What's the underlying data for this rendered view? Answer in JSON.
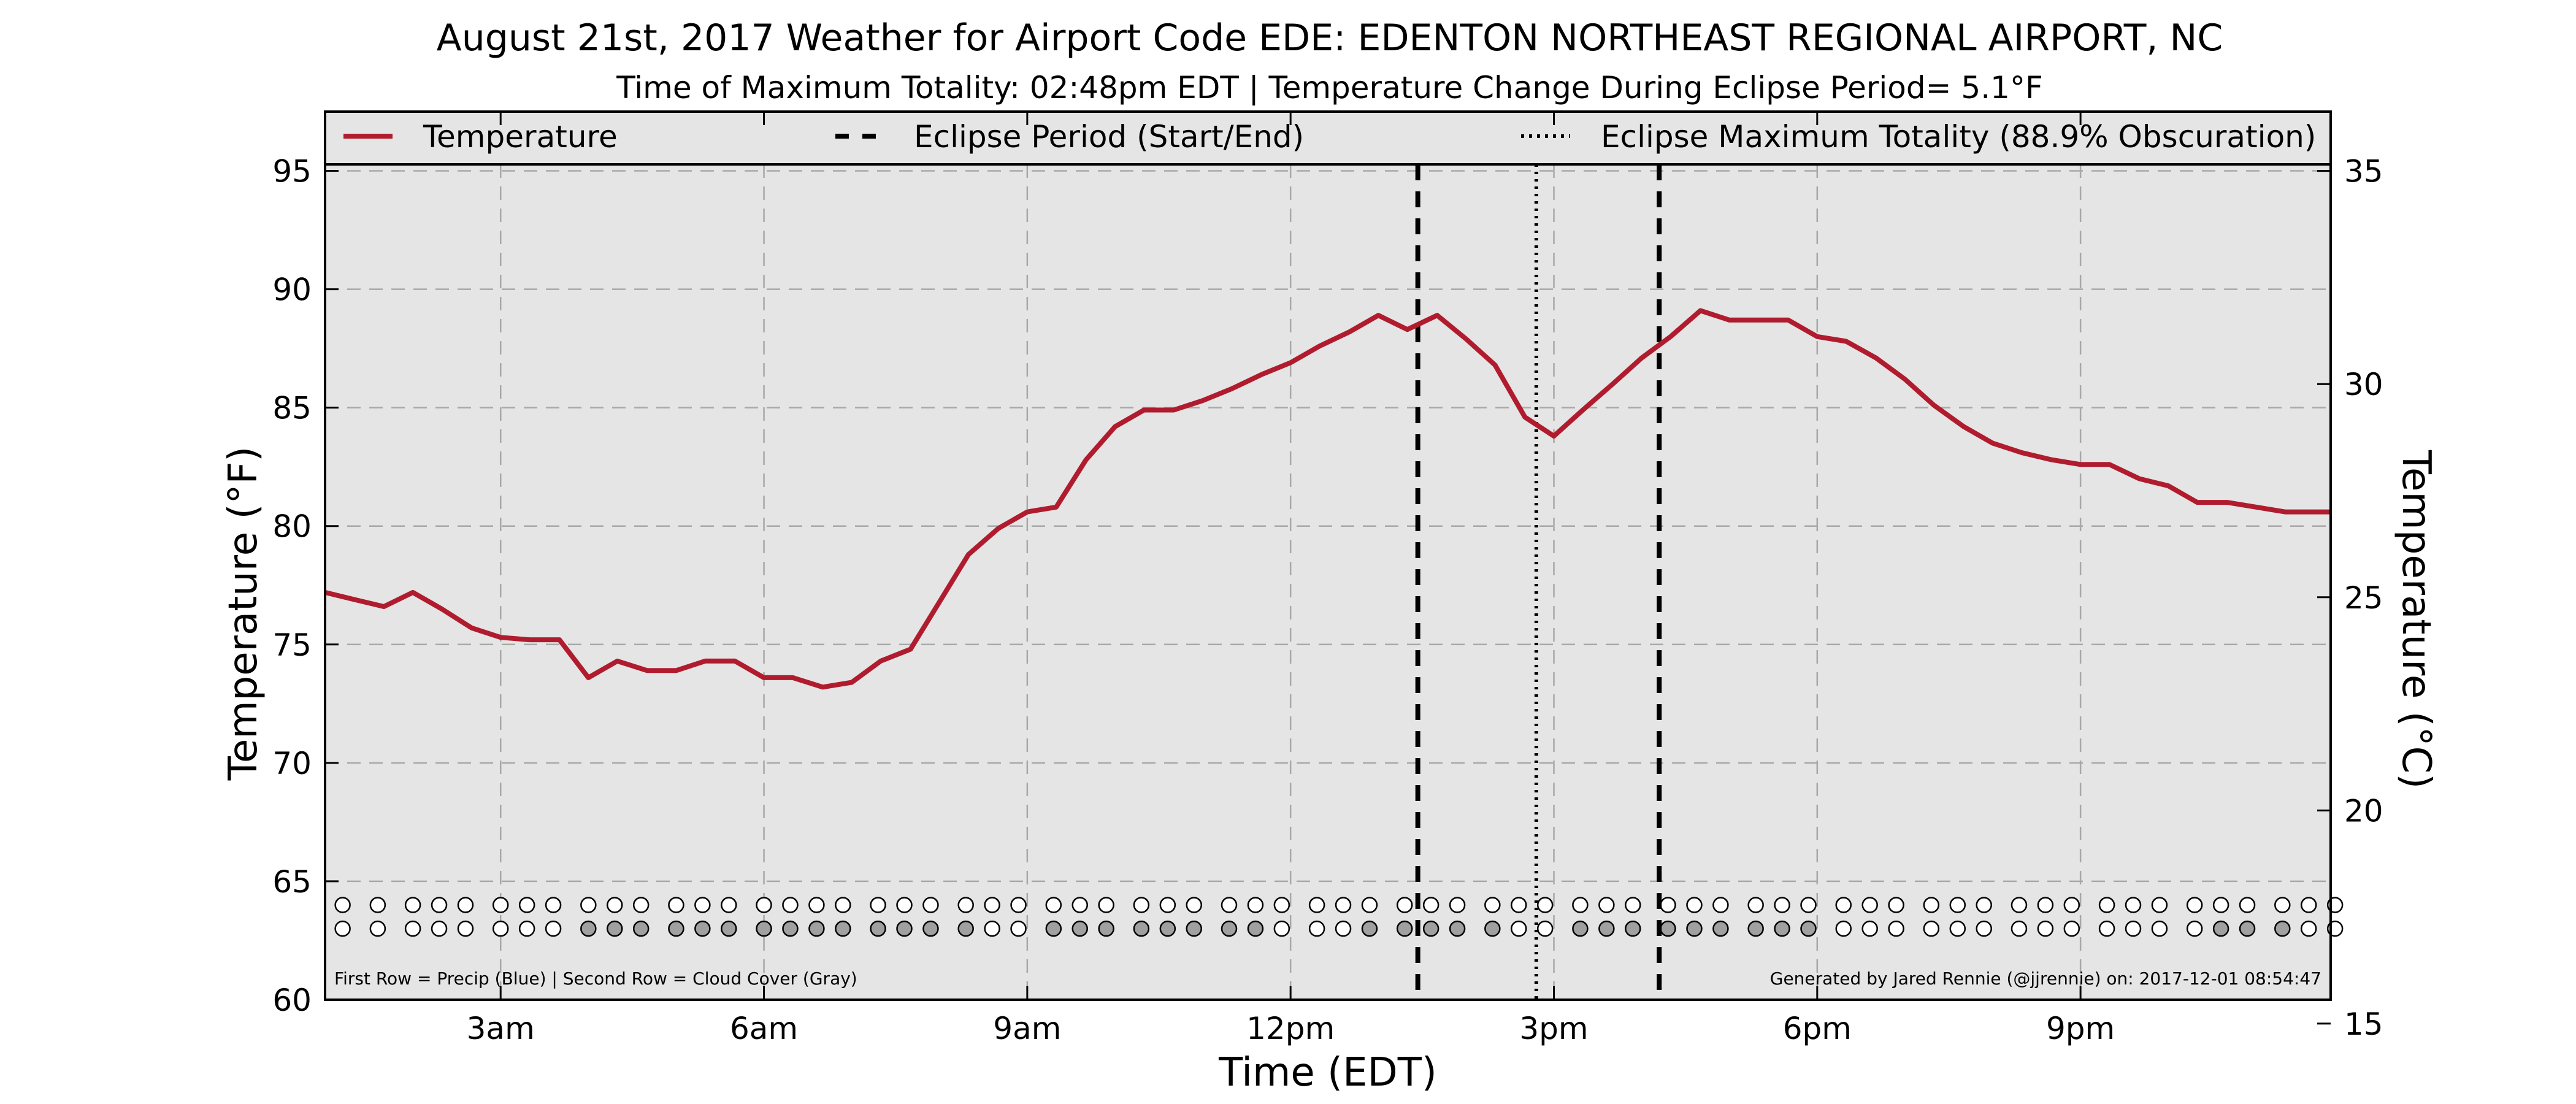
{
  "chart_data": {
    "type": "line",
    "title": "August 21st, 2017 Weather for Airport Code EDE: EDENTON NORTHEAST REGIONAL AIRPORT, NC",
    "subtitle": "Time of Maximum Totality: 02:48pm EDT | Temperature Change During Eclipse Period= 5.1°F",
    "xlabel": "Time (EDT)",
    "ylabel": "Temperature (°F)",
    "y2label": "Temperature (°C)",
    "xlim": [
      1.0,
      23.85
    ],
    "ylim": [
      60,
      97.5
    ],
    "y2lim": [
      15.56,
      36.39
    ],
    "xticks": [
      {
        "value": 3,
        "label": "3am"
      },
      {
        "value": 6,
        "label": "6am"
      },
      {
        "value": 9,
        "label": "9am"
      },
      {
        "value": 12,
        "label": "12pm"
      },
      {
        "value": 15,
        "label": "3pm"
      },
      {
        "value": 18,
        "label": "6pm"
      },
      {
        "value": 21,
        "label": "9pm"
      }
    ],
    "yticks": [
      {
        "value": 60,
        "label": "60"
      },
      {
        "value": 65,
        "label": "65"
      },
      {
        "value": 70,
        "label": "70"
      },
      {
        "value": 75,
        "label": "75"
      },
      {
        "value": 80,
        "label": "80"
      },
      {
        "value": 85,
        "label": "85"
      },
      {
        "value": 90,
        "label": "90"
      },
      {
        "value": 95,
        "label": "95"
      }
    ],
    "y2ticks": [
      {
        "value": 15,
        "label": "15"
      },
      {
        "value": 20,
        "label": "20"
      },
      {
        "value": 25,
        "label": "25"
      },
      {
        "value": 30,
        "label": "30"
      },
      {
        "value": 35,
        "label": "35"
      }
    ],
    "grid": true,
    "legend": {
      "placement": "top",
      "entries": [
        {
          "label": "Temperature",
          "style": "solid",
          "color": "#b01c2e"
        },
        {
          "label": "Eclipse Period (Start/End)",
          "style": "dashed",
          "color": "#000000"
        },
        {
          "label": "Eclipse Maximum Totality (88.9% Obscuration)",
          "style": "dotted",
          "color": "#000000"
        }
      ]
    },
    "series": [
      {
        "name": "Temperature",
        "color": "#b01c2e",
        "x": [
          1.0,
          1.33,
          1.67,
          2.0,
          2.33,
          2.67,
          3.0,
          3.33,
          3.67,
          4.0,
          4.33,
          4.67,
          5.0,
          5.33,
          5.67,
          6.0,
          6.33,
          6.67,
          7.0,
          7.33,
          7.67,
          8.0,
          8.33,
          8.67,
          9.0,
          9.33,
          9.67,
          10.0,
          10.33,
          10.67,
          11.0,
          11.33,
          11.67,
          12.0,
          12.33,
          12.67,
          13.0,
          13.33,
          13.67,
          14.0,
          14.33,
          14.67,
          15.0,
          15.33,
          15.67,
          16.0,
          16.33,
          16.67,
          17.0,
          17.33,
          17.67,
          18.0,
          18.33,
          18.67,
          19.0,
          19.33,
          19.67,
          20.0,
          20.33,
          20.67,
          21.0,
          21.33,
          21.67,
          22.0,
          22.33,
          22.67,
          23.0,
          23.33,
          23.67,
          23.85
        ],
        "values": [
          77.2,
          76.9,
          76.6,
          77.2,
          76.5,
          75.7,
          75.3,
          75.2,
          75.2,
          73.6,
          74.3,
          73.9,
          73.9,
          74.3,
          74.3,
          73.6,
          73.6,
          73.2,
          73.4,
          74.3,
          74.8,
          76.8,
          78.8,
          79.9,
          80.6,
          80.8,
          82.8,
          84.2,
          84.9,
          84.9,
          85.3,
          85.8,
          86.4,
          86.9,
          87.6,
          88.2,
          88.9,
          88.3,
          88.9,
          87.9,
          86.8,
          84.6,
          83.8,
          84.9,
          86.0,
          87.1,
          88.0,
          89.1,
          88.7,
          88.7,
          88.7,
          88.0,
          87.8,
          87.1,
          86.2,
          85.1,
          84.2,
          83.5,
          83.1,
          82.8,
          82.6,
          82.6,
          82.0,
          81.7,
          81.0,
          81.0,
          80.8,
          80.6,
          80.6,
          80.6
        ]
      }
    ],
    "eclipse_start": 13.45,
    "eclipse_end": 16.2,
    "eclipse_max": 14.8,
    "circles": {
      "row1_y": 64.0,
      "row2_y": 63.0,
      "x": [
        1.2,
        1.6,
        2.0,
        2.3,
        2.6,
        3.0,
        3.3,
        3.6,
        4.0,
        4.3,
        4.6,
        5.0,
        5.3,
        5.6,
        6.0,
        6.3,
        6.6,
        6.9,
        7.3,
        7.6,
        7.9,
        8.3,
        8.6,
        8.9,
        9.3,
        9.6,
        9.9,
        10.3,
        10.6,
        10.9,
        11.3,
        11.6,
        11.9,
        12.3,
        12.6,
        12.9,
        13.3,
        13.6,
        13.9,
        14.3,
        14.6,
        14.9,
        15.3,
        15.6,
        15.9,
        16.3,
        16.6,
        16.9,
        17.3,
        17.6,
        17.9,
        18.3,
        18.6,
        18.9,
        19.3,
        19.6,
        19.9,
        20.3,
        20.6,
        20.9,
        21.3,
        21.6,
        21.9,
        22.3,
        22.6,
        22.9,
        23.3,
        23.6,
        23.9
      ],
      "precip": [
        0,
        0,
        0,
        0,
        0,
        0,
        0,
        0,
        0,
        0,
        0,
        0,
        0,
        0,
        0,
        0,
        0,
        0,
        0,
        0,
        0,
        0,
        0,
        0,
        0,
        0,
        0,
        0,
        0,
        0,
        0,
        0,
        0,
        0,
        0,
        0,
        0,
        0,
        0,
        0,
        0,
        0,
        0,
        0,
        0,
        0,
        0,
        0,
        0,
        0,
        0,
        0,
        0,
        0,
        0,
        0,
        0,
        0,
        0,
        0,
        0,
        0,
        0,
        0,
        0,
        0,
        0,
        0,
        0
      ],
      "cloud": [
        0,
        0,
        0,
        0,
        0,
        0,
        0,
        0,
        1,
        1,
        1,
        1,
        1,
        1,
        1,
        1,
        1,
        1,
        1,
        1,
        1,
        1,
        0,
        0,
        1,
        1,
        1,
        1,
        1,
        1,
        1,
        1,
        0,
        0,
        0,
        1,
        1,
        1,
        1,
        1,
        0,
        0,
        1,
        1,
        1,
        1,
        1,
        1,
        1,
        1,
        1,
        0,
        0,
        0,
        0,
        0,
        0,
        0,
        0,
        0,
        0,
        0,
        0,
        0,
        1,
        1,
        1,
        0,
        0
      ]
    },
    "footnote_left": "First Row = Precip (Blue) | Second Row = Cloud Cover (Gray)",
    "footnote_right": "Generated by Jared Rennie (@jjrennie) on: 2017-12-01 08:54:47"
  }
}
